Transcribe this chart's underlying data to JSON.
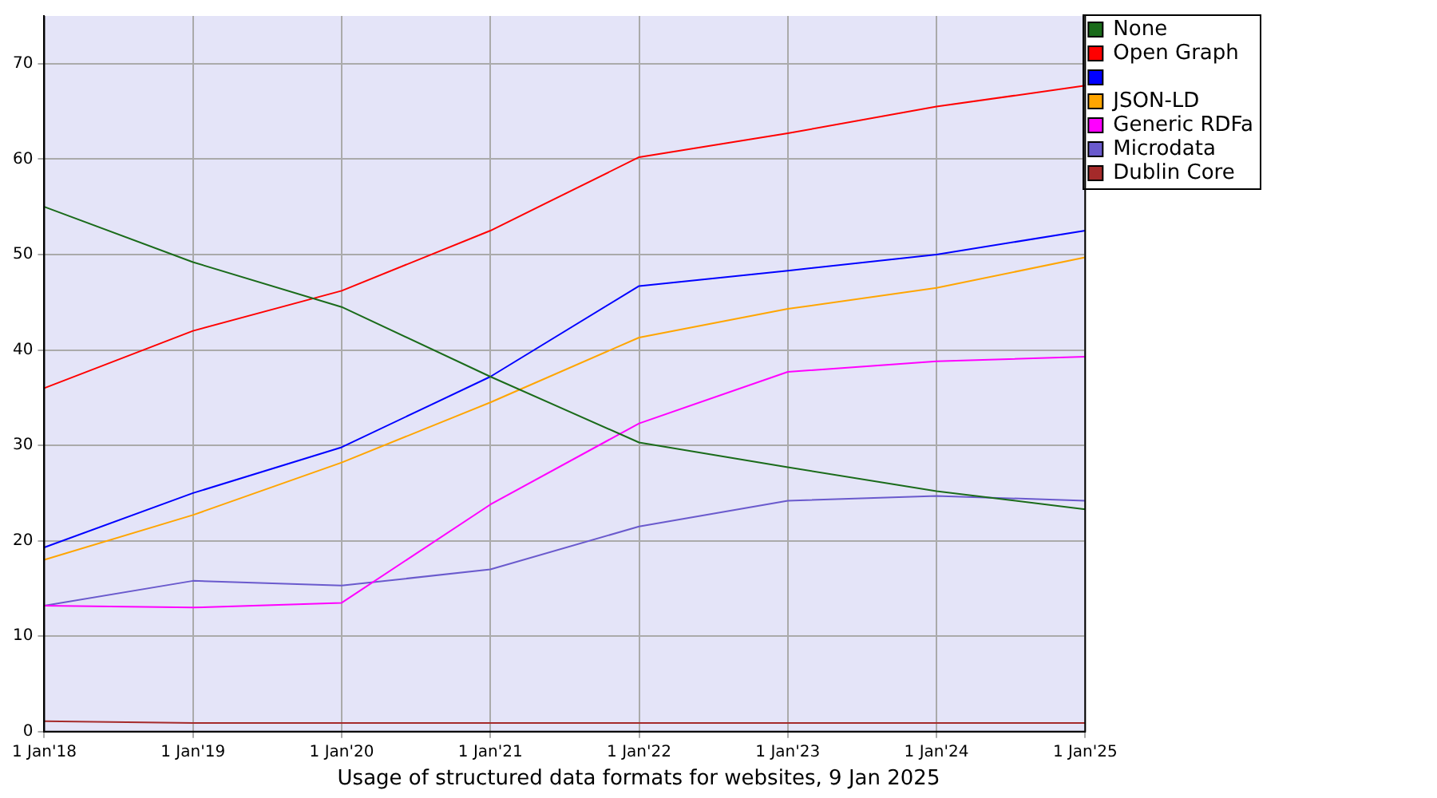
{
  "chart_data": {
    "type": "line",
    "title": "Usage of structured data formats for websites, 9 Jan 2025",
    "categories": [
      "1 Jan'18",
      "1 Jan'19",
      "1 Jan'20",
      "1 Jan'21",
      "1 Jan'22",
      "1 Jan'23",
      "1 Jan'24",
      "1 Jan'25"
    ],
    "series": [
      {
        "name": "None",
        "color": "#1a6b1a",
        "values": [
          55,
          49.2,
          44.5,
          37.2,
          30.3,
          27.7,
          25.2,
          23.3
        ]
      },
      {
        "name": "Open Graph",
        "color": "#ff0000",
        "values": [
          36,
          42,
          46.2,
          52.5,
          60.2,
          62.7,
          65.5,
          67.7
        ]
      },
      {
        "color": "#0000ff",
        "values": [
          19.3,
          25,
          29.8,
          37.2,
          46.7,
          48.3,
          50,
          52.5
        ]
      },
      {
        "name": "JSON-LD",
        "color": "#ffa500",
        "values": [
          18,
          22.7,
          28.2,
          34.5,
          41.3,
          44.3,
          46.5,
          49.7
        ]
      },
      {
        "name": "Generic RDFa",
        "color": "#ff00ff",
        "values": [
          13.2,
          13,
          13.5,
          23.8,
          32.3,
          37.7,
          38.8,
          39.3
        ]
      },
      {
        "name": "Microdata",
        "color": "#6a5acd",
        "values": [
          13.2,
          15.8,
          15.3,
          17,
          21.5,
          24.2,
          24.7,
          24.2
        ]
      },
      {
        "name": "Dublin Core",
        "color": "#a52a2a",
        "values": [
          1.1,
          0.9,
          0.9,
          0.9,
          0.9,
          0.9,
          0.9,
          0.9
        ]
      }
    ],
    "ylim": [
      0,
      75
    ],
    "yticks": [
      0,
      10,
      20,
      30,
      40,
      50,
      60,
      70
    ],
    "grid": true,
    "legend": "right",
    "marker": "none",
    "line_style": "solid"
  }
}
